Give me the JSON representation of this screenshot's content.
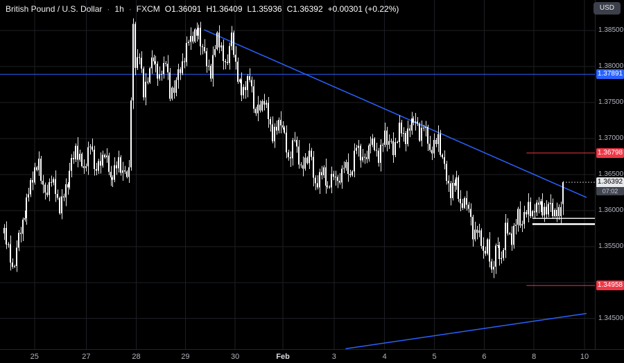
{
  "header": {
    "symbol": "British Pound / U.S. Dollar",
    "sep": "·",
    "timeframe": "1h",
    "exchange": "FXCM",
    "open": "O1.36091",
    "high": "H1.36409",
    "low": "L1.35936",
    "close": "C1.36392",
    "change": "+0.00301 (+0.22%)",
    "currency": "USD"
  },
  "chart_data": {
    "type": "candlestick",
    "title": "British Pound / U.S. Dollar · 1h · FXCM",
    "symbol": "GBP/USD",
    "timeframe": "1h",
    "exchange": "FXCM",
    "ohlc_last": {
      "open": 1.36091,
      "high": 1.36409,
      "low": 1.35936,
      "close": 1.36392
    },
    "change_abs": "+0.00301",
    "change_pct": "+0.22%",
    "colors": {
      "background": "#000000",
      "grid": "#1D1F24",
      "candle": "#FFFFFF",
      "blue": "#2962FF",
      "red": "#F23645",
      "axis_text": "#B2B5BE"
    },
    "y_axis": {
      "max": 1.38923,
      "min": 1.34074,
      "grid_prices": [
        1.385,
        1.38,
        1.375,
        1.37,
        1.365,
        1.36,
        1.355,
        1.35,
        1.345
      ],
      "ticks": [
        {
          "label": "1.38500",
          "price": 1.385
        },
        {
          "label": "1.38000",
          "price": 1.38
        },
        {
          "label": "1.37500",
          "price": 1.375
        },
        {
          "label": "1.37000",
          "price": 1.37
        },
        {
          "label": "1.36500",
          "price": 1.365
        },
        {
          "label": "1.36000",
          "price": 1.36
        },
        {
          "label": "1.35500",
          "price": 1.355
        },
        {
          "label": "1.34500",
          "price": 1.345
        }
      ]
    },
    "x_axis": {
      "ticks": [
        {
          "label": "25",
          "xf": 0.058
        },
        {
          "label": "27",
          "xf": 0.145
        },
        {
          "label": "28",
          "xf": 0.229
        },
        {
          "label": "29",
          "xf": 0.3116
        },
        {
          "label": "30",
          "xf": 0.3953
        },
        {
          "label": "Feb",
          "xf": 0.4756,
          "bold": true
        },
        {
          "label": "3",
          "xf": 0.5616
        },
        {
          "label": "4",
          "xf": 0.6465
        },
        {
          "label": "5",
          "xf": 0.7302
        },
        {
          "label": "6",
          "xf": 0.814
        },
        {
          "label": "8",
          "xf": 0.8977
        },
        {
          "label": "10",
          "xf": 0.9825
        }
      ]
    },
    "levels": [
      {
        "name": "horizontal-ray-137891",
        "price": 1.37891,
        "color": "#2962FF",
        "label": "1.37891",
        "x1f": 0,
        "x2f": 1,
        "width": 1
      },
      {
        "name": "resistance-level-136798",
        "price": 1.36798,
        "color": "#F23645",
        "label": "1.36798",
        "x1f": 0.885,
        "x2f": 1,
        "width": 1
      },
      {
        "name": "support-level-134958",
        "price": 1.34958,
        "color": "#F23645",
        "label": "1.34958",
        "x1f": 0.885,
        "x2f": 1,
        "width": 1
      },
      {
        "name": "liquidity-line-upper",
        "price": 1.3589,
        "color": "#E8E8E8",
        "x1f": 0.895,
        "x2f": 1,
        "width": 1.5
      },
      {
        "name": "liquidity-line-lower",
        "price": 1.3581,
        "color": "#FFFFFF",
        "x1f": 0.895,
        "x2f": 1,
        "width": 2.5
      }
    ],
    "trendlines": [
      {
        "name": "descending-trendline",
        "x1f": 0.343,
        "p1": 1.3851,
        "x2f": 0.986,
        "p2": 1.3618,
        "color": "#2962FF",
        "width": 1.5
      },
      {
        "name": "ascending-trendline",
        "x1f": 0.581,
        "p1": 1.3408,
        "x2f": 0.986,
        "p2": 1.3457,
        "color": "#2962FF",
        "width": 1.5
      }
    ],
    "current_price": {
      "label": "1.36392",
      "countdown": "07:02",
      "price": 1.36392
    },
    "candle_count": 274,
    "price_path": [
      [
        0,
        1.3572
      ],
      [
        2,
        1.3545
      ],
      [
        4,
        1.3516
      ],
      [
        7,
        1.356
      ],
      [
        10,
        1.3598
      ],
      [
        13,
        1.3638
      ],
      [
        17,
        1.3666
      ],
      [
        20,
        1.3616
      ],
      [
        23,
        1.3648
      ],
      [
        27,
        1.3602
      ],
      [
        31,
        1.364
      ],
      [
        35,
        1.3688
      ],
      [
        39,
        1.3655
      ],
      [
        42,
        1.3692
      ],
      [
        45,
        1.3652
      ],
      [
        49,
        1.3683
      ],
      [
        52,
        1.3642
      ],
      [
        56,
        1.3668
      ],
      [
        59,
        1.3645
      ],
      [
        61,
        1.3658
      ],
      [
        62,
        1.3762
      ],
      [
        63,
        1.3852
      ],
      [
        64,
        1.38
      ],
      [
        66,
        1.3818
      ],
      [
        68,
        1.376
      ],
      [
        70,
        1.3786
      ],
      [
        73,
        1.3812
      ],
      [
        76,
        1.3782
      ],
      [
        79,
        1.381
      ],
      [
        81,
        1.3758
      ],
      [
        84,
        1.3778
      ],
      [
        87,
        1.3805
      ],
      [
        90,
        1.3836
      ],
      [
        95,
        1.3848
      ],
      [
        98,
        1.3812
      ],
      [
        101,
        1.3792
      ],
      [
        104,
        1.3843
      ],
      [
        108,
        1.38
      ],
      [
        111,
        1.3838
      ],
      [
        114,
        1.3788
      ],
      [
        116,
        1.3762
      ],
      [
        120,
        1.3784
      ],
      [
        123,
        1.3732
      ],
      [
        127,
        1.3756
      ],
      [
        131,
        1.3702
      ],
      [
        135,
        1.3726
      ],
      [
        139,
        1.3672
      ],
      [
        142,
        1.37
      ],
      [
        145,
        1.3655
      ],
      [
        149,
        1.368
      ],
      [
        152,
        1.3636
      ],
      [
        156,
        1.3656
      ],
      [
        158,
        1.3625
      ],
      [
        161,
        1.3655
      ],
      [
        163,
        1.3632
      ],
      [
        166,
        1.3668
      ],
      [
        169,
        1.3645
      ],
      [
        172,
        1.369
      ],
      [
        176,
        1.3665
      ],
      [
        179,
        1.37
      ],
      [
        183,
        1.3672
      ],
      [
        186,
        1.3705
      ],
      [
        190,
        1.3682
      ],
      [
        193,
        1.3715
      ],
      [
        196,
        1.3698
      ],
      [
        200,
        1.373
      ],
      [
        203,
        1.3702
      ],
      [
        205,
        1.3724
      ],
      [
        208,
        1.368
      ],
      [
        212,
        1.37
      ],
      [
        215,
        1.3656
      ],
      [
        218,
        1.3626
      ],
      [
        221,
        1.3642
      ],
      [
        223,
        1.3602
      ],
      [
        226,
        1.3616
      ],
      [
        229,
        1.3565
      ],
      [
        231,
        1.3578
      ],
      [
        234,
        1.354
      ],
      [
        236,
        1.3552
      ],
      [
        238,
        1.3512
      ],
      [
        240,
        1.3548
      ],
      [
        243,
        1.3532
      ],
      [
        245,
        1.3576
      ],
      [
        248,
        1.3558
      ],
      [
        251,
        1.3596
      ],
      [
        253,
        1.3578
      ],
      [
        256,
        1.361
      ],
      [
        258,
        1.3592
      ],
      [
        261,
        1.3614
      ],
      [
        263,
        1.3596
      ],
      [
        266,
        1.3606
      ],
      [
        268,
        1.3597
      ],
      [
        270,
        1.3601
      ],
      [
        272,
        1.3594
      ],
      [
        273,
        1.3609
      ]
    ],
    "noise_body": [
      0.0004,
      -0.0006,
      0.0008,
      -0.0003,
      0.0006,
      -0.0008,
      0.0003,
      0.0009,
      -0.0005,
      0.0002,
      -0.0009,
      0.0007,
      -0.0002
    ],
    "noise_wick": [
      0.0005,
      0.0009,
      0.0003,
      0.0012,
      0.0006,
      0.0002,
      0.001,
      0.0004,
      0.0008,
      0.0003,
      0.0011
    ],
    "last_candle": {
      "o": 1.36091,
      "h": 1.36409,
      "l": 1.35936,
      "c": 1.36392
    }
  }
}
